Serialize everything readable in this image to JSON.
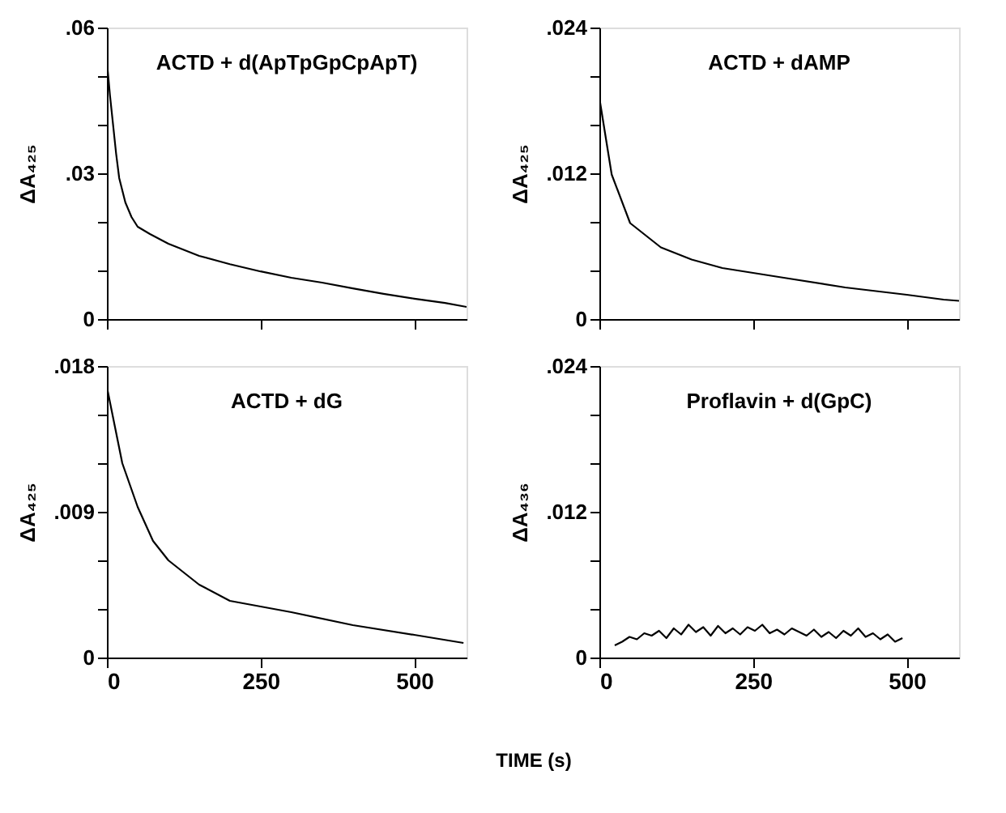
{
  "chart_data": [
    {
      "type": "line",
      "annotations": [
        "ACTD + d(ApTpGpCpApT)"
      ],
      "ylabel": "ΔA₄₂₅",
      "tick_labels": "y",
      "grid": false,
      "x": [
        0,
        5,
        10,
        15,
        20,
        30,
        40,
        50,
        70,
        100,
        150,
        200,
        250,
        300,
        350,
        400,
        450,
        500,
        550,
        585
      ],
      "series": [
        {
          "color": "#000000",
          "values": [
            0.053,
            0.046,
            0.04,
            0.034,
            0.029,
            0.024,
            0.021,
            0.019,
            0.0175,
            0.0155,
            0.013,
            0.0113,
            0.0098,
            0.0085,
            0.0075,
            0.0063,
            0.0052,
            0.0042,
            0.0033,
            0.0025
          ]
        }
      ],
      "xlim": [
        0,
        585
      ],
      "xticks": [
        0,
        250,
        500
      ],
      "ylim": [
        0,
        0.06
      ],
      "yticks": [
        0,
        {
          "value": 0.01,
          "label": null
        },
        {
          "value": 0.02,
          "label": null
        },
        {
          "value": 0.03,
          "label": ".03"
        },
        {
          "value": 0.04,
          "label": null
        },
        {
          "value": 0.05,
          "label": null
        },
        {
          "value": 0.06,
          "label": ".06"
        }
      ]
    },
    {
      "type": "line",
      "annotations": [
        "ACTD + dAMP"
      ],
      "ylabel": "ΔA₄₂₅",
      "tick_labels": "y",
      "grid": false,
      "x": [
        0,
        20,
        50,
        100,
        150,
        200,
        300,
        400,
        500,
        560,
        585
      ],
      "series": [
        {
          "color": "#000000",
          "values": [
            0.0182,
            0.0119,
            0.0079,
            0.0059,
            0.0049,
            0.0042,
            0.0034,
            0.0026,
            0.002,
            0.0016,
            0.0015
          ]
        }
      ],
      "xlim": [
        0,
        585
      ],
      "xticks": [
        0,
        250,
        500
      ],
      "ylim": [
        0,
        0.024
      ],
      "yticks": [
        0,
        {
          "value": 0.004,
          "label": null
        },
        {
          "value": 0.008,
          "label": null
        },
        {
          "value": 0.012,
          "label": ".012"
        },
        {
          "value": 0.016,
          "label": null
        },
        {
          "value": 0.02,
          "label": null
        },
        {
          "value": 0.024,
          "label": ".024"
        }
      ]
    },
    {
      "type": "line",
      "annotations": [
        "ACTD + dG"
      ],
      "ylabel": "ΔA₄₂₅",
      "xlabel": "TIME (s)",
      "grid": false,
      "x": [
        0,
        25,
        50,
        75,
        100,
        150,
        200,
        300,
        400,
        500,
        580
      ],
      "series": [
        {
          "color": "#000000",
          "values": [
            0.0167,
            0.012,
            0.0093,
            0.0072,
            0.006,
            0.0045,
            0.0035,
            0.0028,
            0.002,
            0.0014,
            0.0009
          ]
        }
      ],
      "xlim": [
        0,
        585
      ],
      "xticks": [
        0,
        250,
        500
      ],
      "ylim": [
        0,
        0.018
      ],
      "yticks": [
        0,
        {
          "value": 0.003,
          "label": null
        },
        {
          "value": 0.006,
          "label": null
        },
        {
          "value": 0.009,
          "label": ".009"
        },
        {
          "value": 0.012,
          "label": null
        },
        {
          "value": 0.015,
          "label": null
        },
        {
          "value": 0.018,
          "label": ".018"
        }
      ]
    },
    {
      "type": "line",
      "annotations": [
        "Proflavin + d(GpC)"
      ],
      "ylabel": "ΔA₄₃₆",
      "grid": false,
      "x": [
        25,
        37,
        49,
        61,
        73,
        85,
        97,
        109,
        121,
        133,
        145,
        157,
        169,
        181,
        193,
        205,
        217,
        229,
        241,
        253,
        265,
        277,
        289,
        301,
        313,
        325,
        337,
        349,
        361,
        373,
        385,
        397,
        409,
        421,
        433,
        445,
        457,
        469,
        481,
        493
      ],
      "series": [
        {
          "color": "#000000",
          "values": [
            0.001,
            0.0013,
            0.0017,
            0.0015,
            0.002,
            0.0018,
            0.0022,
            0.0016,
            0.0024,
            0.0019,
            0.0027,
            0.0021,
            0.0025,
            0.0018,
            0.0026,
            0.002,
            0.0024,
            0.0019,
            0.0025,
            0.0022,
            0.0027,
            0.002,
            0.0023,
            0.0019,
            0.0024,
            0.0021,
            0.0018,
            0.0023,
            0.0017,
            0.0021,
            0.0016,
            0.0022,
            0.0018,
            0.0024,
            0.0017,
            0.002,
            0.0015,
            0.0019,
            0.0013,
            0.0016
          ]
        }
      ],
      "xlim": [
        0,
        585
      ],
      "xticks": [
        0,
        250,
        500
      ],
      "ylim": [
        0,
        0.024
      ],
      "yticks": [
        0,
        {
          "value": 0.004,
          "label": null
        },
        {
          "value": 0.008,
          "label": null
        },
        {
          "value": 0.012,
          "label": ".012"
        },
        {
          "value": 0.016,
          "label": null
        },
        {
          "value": 0.02,
          "label": null
        },
        {
          "value": 0.024,
          "label": ".024"
        }
      ]
    }
  ]
}
